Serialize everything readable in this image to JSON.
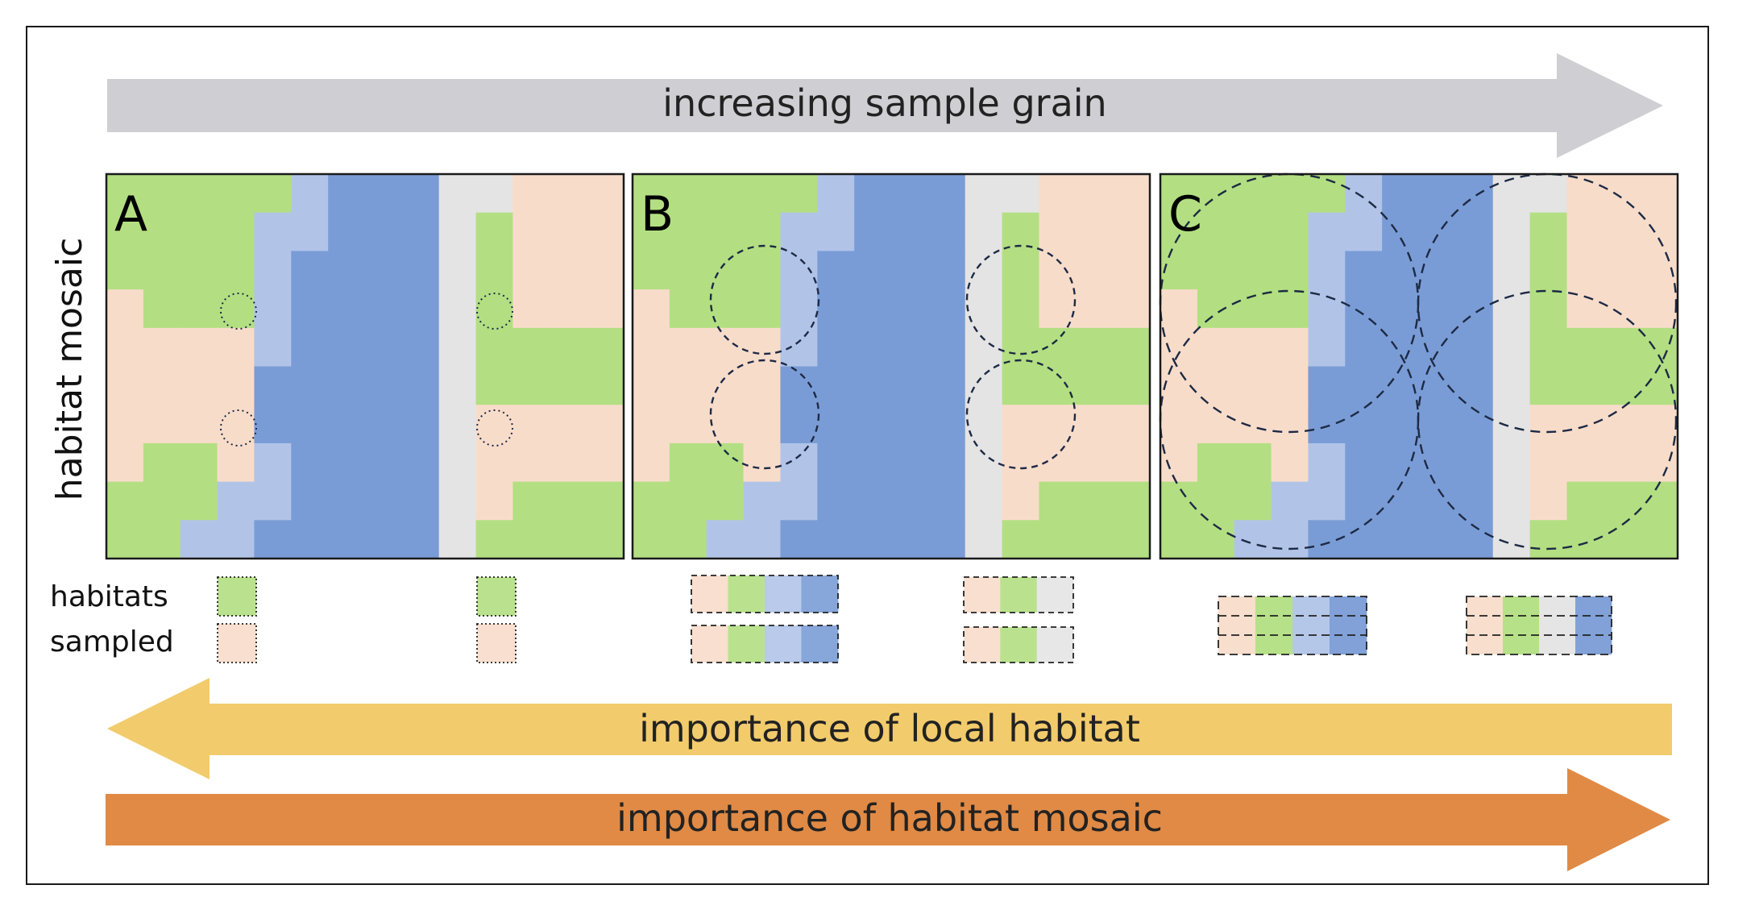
{
  "top_arrow": {
    "label": "increasing sample grain",
    "color": "#cfcfd3"
  },
  "left_label": "habitat mosaic",
  "panels": [
    {
      "letter": "A"
    },
    {
      "letter": "B"
    },
    {
      "letter": "C"
    }
  ],
  "habitats_sampled_label": {
    "line1": "habitats",
    "line2": "sampled"
  },
  "local_arrow": {
    "label": "importance of local habitat",
    "color": "#f2cb6c"
  },
  "mosaic_arrow": {
    "label": "importance of habitat mosaic",
    "color": "#e08a45"
  },
  "habitat_colors": {
    "green": "#b3df82",
    "salmon": "#f8dcca",
    "light_blue": "#b1c4e8",
    "blue": "#7a9cd6",
    "gray": "#e4e4e4"
  },
  "sampled_sets": [
    [
      "green"
    ],
    [
      "green"
    ],
    [
      "salmon"
    ],
    [
      "salmon"
    ],
    [
      "salmon",
      "green",
      "light_blue",
      "blue"
    ],
    [
      "salmon",
      "green",
      "gray"
    ],
    [
      "salmon",
      "green",
      "light_blue",
      "blue"
    ],
    [
      "salmon",
      "green",
      "gray"
    ],
    [
      "salmon",
      "green",
      "light_blue",
      "blue"
    ],
    [
      "salmon",
      "green",
      "gray",
      "blue"
    ]
  ]
}
